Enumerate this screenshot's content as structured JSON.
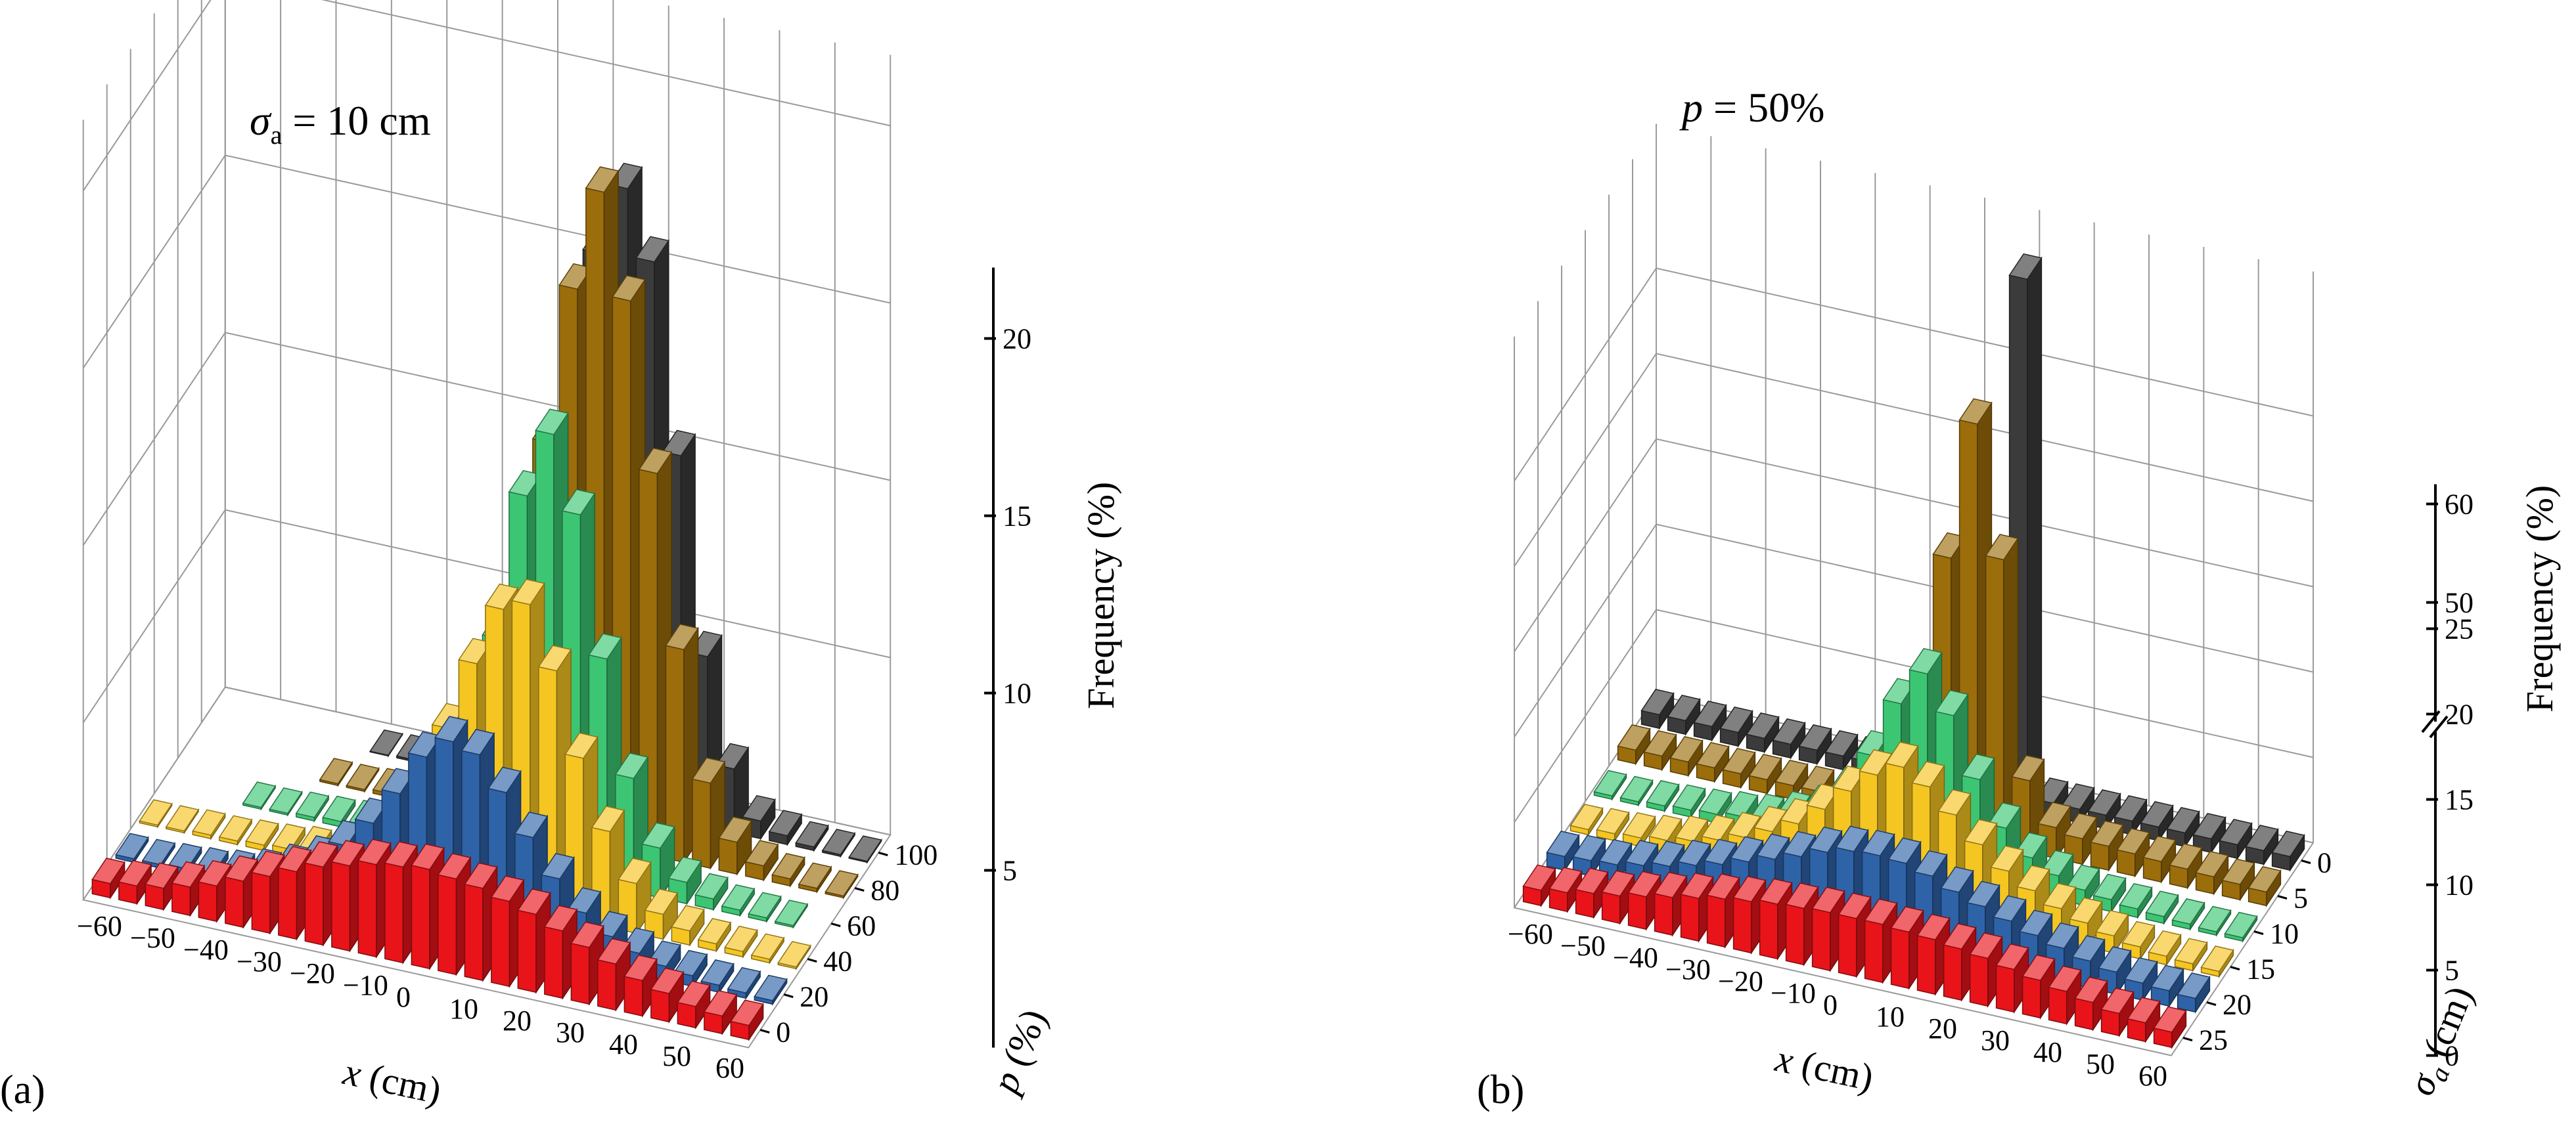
{
  "figure": {
    "panels": [
      {
        "label": "(a)",
        "annotation": "σa = 10 cm",
        "annotation_parts": {
          "symbol": "σ",
          "subscript": "a",
          "rest": " = 10 cm"
        },
        "x_title": {
          "symbol": "x",
          "unit": " (cm)"
        },
        "depth_title": {
          "symbol": "p",
          "unit": " (%)"
        },
        "z_title": "Frequency (%)"
      },
      {
        "label": "(b)",
        "annotation": "p = 50%",
        "annotation_parts": {
          "symbol": "p",
          "rest": " = 50%"
        },
        "x_title": {
          "symbol": "x",
          "unit": " (cm)"
        },
        "depth_title": {
          "symbol": "σa",
          "sym_main": "σ",
          "sym_sub": "a",
          "unit": " (cm)"
        },
        "z_title": "Frequency (%)"
      }
    ]
  },
  "chart_data": [
    {
      "type": "bar",
      "panel": "(a)",
      "annotation": "σa = 10 cm",
      "xlabel": "x (cm)",
      "ylabel": "p (%)",
      "zlabel": "Frequency (%)",
      "x": [
        -60,
        -55,
        -50,
        -45,
        -40,
        -35,
        -30,
        -25,
        -20,
        -15,
        -10,
        -5,
        0,
        5,
        10,
        15,
        20,
        25,
        30,
        35,
        40,
        45,
        50,
        55,
        60
      ],
      "x_tick_labels": [
        "−60",
        "−50",
        "−40",
        "−30",
        "−20",
        "−10",
        "0",
        "10",
        "20",
        "30",
        "40",
        "50",
        "60"
      ],
      "p_tick_labels": [
        "0",
        "20",
        "40",
        "60",
        "80",
        "100"
      ],
      "z_tick_labels": [
        "5",
        "10",
        "15",
        "20"
      ],
      "zlim": [
        0,
        20
      ],
      "grid": true,
      "series": [
        {
          "p": 0,
          "color": "#e8141a",
          "values": [
            0.4,
            0.5,
            0.6,
            0.8,
            1.0,
            1.3,
            1.6,
            1.9,
            2.2,
            2.4,
            2.6,
            2.7,
            2.8,
            2.7,
            2.6,
            2.4,
            2.2,
            1.9,
            1.6,
            1.3,
            1.0,
            0.8,
            0.6,
            0.5,
            0.4
          ]
        },
        {
          "p": 20,
          "color": "#2e63a8",
          "values": [
            0.1,
            0.1,
            0.15,
            0.2,
            0.3,
            0.5,
            0.8,
            1.2,
            1.8,
            2.6,
            3.6,
            4.8,
            5.4,
            5.2,
            4.3,
            3.2,
            2.2,
            1.4,
            0.9,
            0.6,
            0.4,
            0.3,
            0.2,
            0.15,
            0.1
          ]
        },
        {
          "p": 40,
          "color": "#f5c522",
          "values": [
            0.05,
            0.05,
            0.1,
            0.1,
            0.15,
            0.2,
            0.3,
            0.5,
            0.9,
            1.6,
            2.8,
            4.6,
            6.6,
            8.3,
            8.6,
            6.9,
            4.6,
            2.7,
            1.4,
            0.7,
            0.4,
            0.2,
            0.15,
            0.1,
            0.05
          ]
        },
        {
          "p": 60,
          "color": "#3cc673",
          "values": [
            0,
            0,
            0,
            0.05,
            0.05,
            0.1,
            0.15,
            0.2,
            0.4,
            0.7,
            1.4,
            3.2,
            6.3,
            10.5,
            12.4,
            10.3,
            6.4,
            3.2,
            1.4,
            0.6,
            0.3,
            0.15,
            0.1,
            0.05,
            0
          ]
        },
        {
          "p": 80,
          "color": "#9b6d0b",
          "values": [
            0,
            0,
            0,
            0,
            0,
            0.05,
            0.05,
            0.1,
            0.2,
            0.4,
            0.9,
            2.4,
            5.7,
            11.0,
            15.5,
            18.4,
            15.5,
            10.8,
            6.0,
            2.4,
            0.9,
            0.4,
            0.2,
            0.1,
            0.05
          ]
        },
        {
          "p": 100,
          "color": "#3b3b3b",
          "values": [
            0,
            0,
            0,
            0,
            0,
            0,
            0.02,
            0.05,
            0.1,
            0.2,
            0.5,
            1.6,
            4.6,
            10.3,
            15.5,
            17.5,
            15.6,
            10.3,
            4.8,
            1.8,
            0.5,
            0.25,
            0.1,
            0.05,
            0.03
          ]
        }
      ]
    },
    {
      "type": "bar",
      "panel": "(b)",
      "annotation": "p = 50%",
      "xlabel": "x (cm)",
      "ylabel": "σa (cm)",
      "zlabel": "Frequency (%)",
      "x": [
        -60,
        -55,
        -50,
        -45,
        -40,
        -35,
        -30,
        -25,
        -20,
        -15,
        -10,
        -5,
        0,
        5,
        10,
        15,
        20,
        25,
        30,
        35,
        40,
        45,
        50,
        55,
        60
      ],
      "x_tick_labels": [
        "−60",
        "−50",
        "−40",
        "−30",
        "−20",
        "−10",
        "0",
        "10",
        "20",
        "30",
        "40",
        "50",
        "60"
      ],
      "sigma_tick_labels": [
        "0",
        "5",
        "10",
        "15",
        "20",
        "25"
      ],
      "z_tick_labels": [
        "0",
        "5",
        "10",
        "15",
        "20",
        "25",
        "50",
        "60"
      ],
      "z_axis_break": [
        25,
        50
      ],
      "grid": true,
      "series": [
        {
          "sigma_a": 25,
          "color": "#e8141a",
          "values": [
            0.9,
            1.1,
            1.4,
            1.6,
            1.9,
            2.2,
            2.5,
            2.8,
            3.0,
            3.2,
            3.3,
            3.4,
            3.4,
            3.4,
            3.3,
            3.2,
            3.0,
            2.8,
            2.5,
            2.2,
            1.9,
            1.6,
            1.3,
            1.1,
            0.9
          ]
        },
        {
          "sigma_a": 20,
          "color": "#2e63a8",
          "values": [
            0.8,
            0.9,
            1.0,
            1.3,
            1.6,
            2.0,
            2.4,
            2.9,
            3.4,
            3.9,
            4.5,
            4.9,
            5.0,
            4.9,
            4.5,
            3.9,
            3.4,
            2.9,
            2.4,
            2.0,
            1.6,
            1.3,
            1.0,
            0.9,
            0.8
          ]
        },
        {
          "sigma_a": 15,
          "color": "#f5c522",
          "values": [
            0.3,
            0.4,
            0.5,
            0.7,
            1.0,
            1.4,
            1.9,
            2.6,
            3.4,
            4.6,
            6.0,
            7.3,
            8.1,
            7.3,
            6.0,
            4.6,
            3.4,
            2.6,
            1.9,
            1.4,
            1.0,
            0.7,
            0.5,
            0.4,
            0.3
          ]
        },
        {
          "sigma_a": 10,
          "color": "#3cc673",
          "values": [
            0.2,
            0.2,
            0.3,
            0.4,
            0.5,
            0.7,
            0.9,
            1.4,
            2.1,
            3.5,
            6.0,
            9.4,
            11.5,
            9.4,
            6.0,
            3.5,
            2.1,
            1.4,
            0.9,
            0.7,
            0.5,
            0.4,
            0.3,
            0.2,
            0.2
          ]
        },
        {
          "sigma_a": 5,
          "color": "#9b6d0b",
          "values": [
            0.8,
            0.8,
            0.8,
            0.8,
            0.8,
            0.8,
            0.8,
            0.8,
            0.8,
            0.9,
            1.2,
            4.0,
            16.2,
            24.4,
            16.8,
            4.2,
            1.8,
            1.5,
            1.4,
            1.3,
            1.2,
            1.1,
            1.0,
            0.9,
            0.8
          ]
        },
        {
          "sigma_a": 0,
          "color": "#3b3b3b",
          "values": [
            0.8,
            0.8,
            0.8,
            0.8,
            0.8,
            0.8,
            0.8,
            0.8,
            0.8,
            0.8,
            0.8,
            0.8,
            0.8,
            0.8,
            58.0,
            0.8,
            0.8,
            0.8,
            0.8,
            0.8,
            0.8,
            0.8,
            0.8,
            0.8,
            0.8
          ]
        }
      ]
    }
  ]
}
